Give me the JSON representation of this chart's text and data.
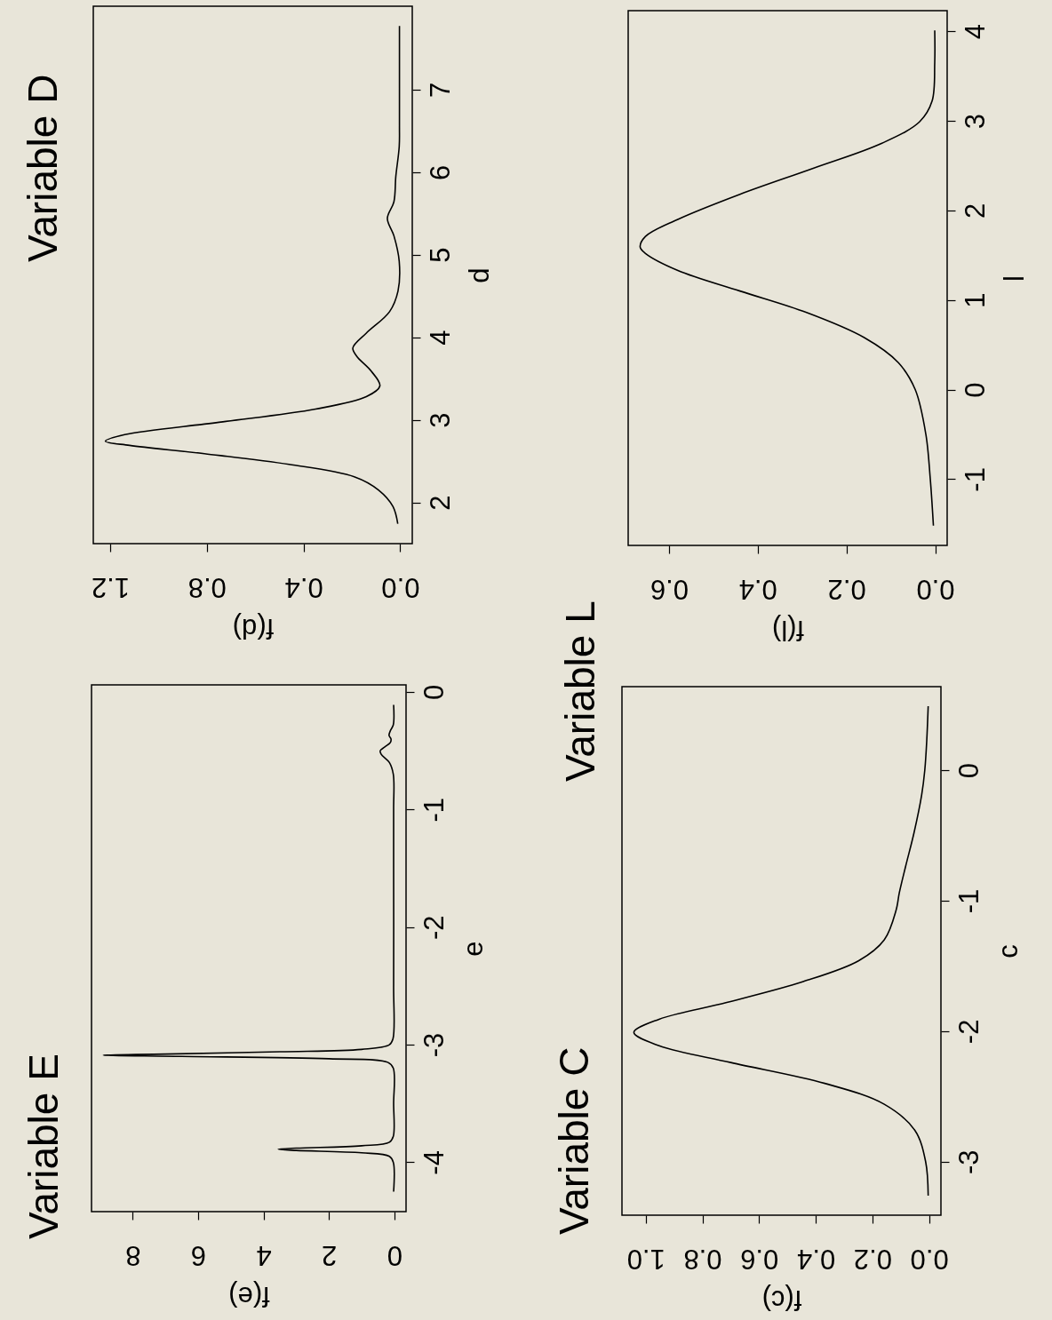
{
  "chart_data": [
    {
      "type": "line",
      "title": "Variable E",
      "xlabel": "f(e)",
      "ylabel": "e",
      "color": "#000000",
      "xlim": [
        9.26,
        -0.36
      ],
      "ylim": [
        -4.42,
        0.06
      ],
      "xticks": [
        0,
        2,
        4,
        6,
        8
      ],
      "yticks": [
        -4,
        -3,
        -2,
        -1,
        0
      ],
      "values": [
        -4.25,
        -4.0,
        -3.95,
        -3.92,
        -3.9,
        -3.89,
        -3.88,
        -3.86,
        -3.83,
        -3.78,
        -3.5,
        -3.2,
        -3.15,
        -3.12,
        -3.1,
        -3.09,
        -3.08,
        -3.06,
        -3.04,
        -3.0,
        -2.95,
        -2.5,
        -1.5,
        -1.0,
        -0.7,
        -0.6,
        -0.53,
        -0.5,
        -0.47,
        -0.43,
        -0.4,
        -0.37,
        -0.33,
        -0.28,
        -0.11
      ],
      "x": [
        0.02,
        0.03,
        0.15,
        1.0,
        3.0,
        3.55,
        3.0,
        1.0,
        0.15,
        0.03,
        0.02,
        0.03,
        0.2,
        2.0,
        6.5,
        8.9,
        7.0,
        3.5,
        1.0,
        0.15,
        0.04,
        0.02,
        0.02,
        0.02,
        0.03,
        0.15,
        0.4,
        0.43,
        0.3,
        0.12,
        0.1,
        0.16,
        0.12,
        0.03,
        0.02
      ]
    },
    {
      "type": "line",
      "title": "Variable D",
      "xlabel": "f(d)",
      "ylabel": "d",
      "color": "#000000",
      "xlim": [
        1.27,
        -0.05
      ],
      "ylim": [
        1.5,
        8.01
      ],
      "xticks": [
        {
          "value": 0,
          "label": "0.0"
        },
        {
          "value": 0.4,
          "label": "0.4"
        },
        {
          "value": 0.8,
          "label": "0.8"
        },
        {
          "value": 1.2,
          "label": "1.2"
        }
      ],
      "yticks": [
        2,
        3,
        4,
        5,
        6,
        7
      ],
      "values": [
        1.74,
        1.95,
        2.15,
        2.31,
        2.46,
        2.59,
        2.69,
        2.74,
        2.82,
        2.97,
        3.13,
        3.28,
        3.41,
        3.59,
        3.77,
        3.87,
        4.05,
        4.31,
        4.56,
        4.92,
        5.23,
        5.44,
        5.64,
        5.95,
        6.31,
        6.56,
        7.08,
        7.77
      ],
      "x": [
        0.01,
        0.03,
        0.09,
        0.19,
        0.46,
        0.81,
        1.12,
        1.22,
        1.14,
        0.75,
        0.35,
        0.14,
        0.084,
        0.12,
        0.18,
        0.196,
        0.14,
        0.044,
        0.009,
        0.004,
        0.026,
        0.053,
        0.026,
        0.018,
        0.004,
        0.003,
        0.003,
        0.003
      ]
    },
    {
      "type": "line",
      "title": "Variable C",
      "xlabel": "f(c)",
      "ylabel": "c",
      "color": "#000000",
      "xlim": [
        1.084,
        -0.042
      ],
      "ylim": [
        -3.41,
        0.64
      ],
      "xticks": [
        {
          "value": 0,
          "label": "0.0"
        },
        {
          "value": 0.2,
          "label": "0.2"
        },
        {
          "value": 0.4,
          "label": "0.4"
        },
        {
          "value": 0.6,
          "label": "0.6"
        },
        {
          "value": 0.8,
          "label": "0.8"
        },
        {
          "value": 1,
          "label": "1.0"
        }
      ],
      "yticks": [
        -3,
        -2,
        -1,
        0
      ],
      "values": [
        -3.26,
        -3.0,
        -2.76,
        -2.56,
        -2.4,
        -2.24,
        -2.11,
        -2.01,
        -1.91,
        -1.78,
        -1.62,
        -1.46,
        -1.3,
        -1.07,
        -0.94,
        -0.74,
        -0.48,
        -0.19,
        0.0,
        0.23,
        0.49
      ],
      "x": [
        0.003,
        0.012,
        0.05,
        0.158,
        0.368,
        0.7,
        0.955,
        1.042,
        0.955,
        0.714,
        0.444,
        0.248,
        0.158,
        0.116,
        0.105,
        0.083,
        0.053,
        0.026,
        0.015,
        0.008,
        0.003
      ]
    },
    {
      "type": "line",
      "title": "Variable L",
      "xlabel": "f(l)",
      "ylabel": "l",
      "color": "#000000",
      "xlim": [
        0.692,
        -0.027
      ],
      "ylim": [
        -1.74,
        4.23
      ],
      "xticks": [
        {
          "value": 0,
          "label": "0.0"
        },
        {
          "value": 0.2,
          "label": "0.2"
        },
        {
          "value": 0.4,
          "label": "0.4"
        },
        {
          "value": 0.6,
          "label": "0.6"
        }
      ],
      "yticks": [
        -1,
        0,
        1,
        2,
        3,
        4
      ],
      "values": [
        -1.52,
        -1.0,
        -0.5,
        0.0,
        0.3,
        0.58,
        0.86,
        1.1,
        1.33,
        1.52,
        1.59,
        1.71,
        1.9,
        2.18,
        2.47,
        2.75,
        2.99,
        3.22,
        3.65,
        4.01
      ],
      "x": [
        0.004,
        0.011,
        0.021,
        0.045,
        0.083,
        0.16,
        0.29,
        0.44,
        0.58,
        0.653,
        0.665,
        0.653,
        0.58,
        0.44,
        0.275,
        0.12,
        0.035,
        0.007,
        0.001,
        0.001
      ]
    }
  ]
}
